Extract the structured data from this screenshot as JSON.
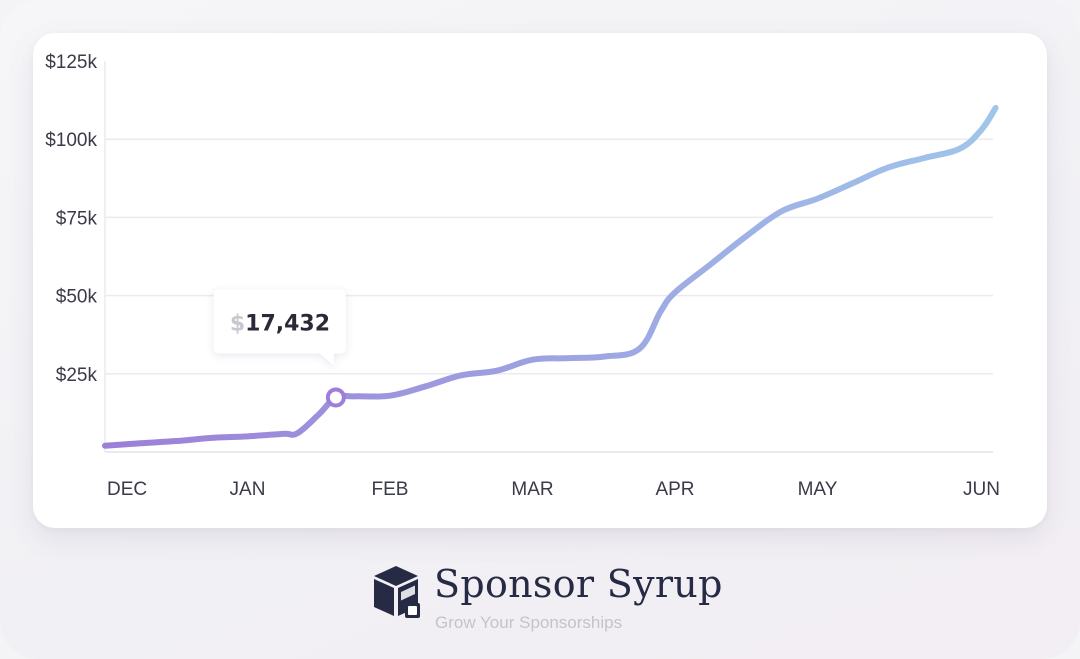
{
  "chart_data": {
    "type": "line",
    "x_categories": [
      "DEC",
      "JAN",
      "FEB",
      "MAR",
      "APR",
      "MAY",
      "JUN"
    ],
    "y_tick_labels": [
      "$125k",
      "$100k",
      "$75k",
      "$50k",
      "$25k"
    ],
    "y_tick_values": [
      125000,
      100000,
      75000,
      50000,
      25000
    ],
    "ylim": [
      0,
      125000
    ],
    "grid": true,
    "series": [
      {
        "points": [
          [
            0.0,
            2000
          ],
          [
            0.25,
            2800
          ],
          [
            0.5,
            3500
          ],
          [
            0.75,
            4500
          ],
          [
            1.0,
            5000
          ],
          [
            1.25,
            5800
          ],
          [
            1.35,
            6000
          ],
          [
            1.5,
            12000
          ],
          [
            1.62,
            17432
          ],
          [
            1.75,
            17800
          ],
          [
            2.0,
            18000
          ],
          [
            2.25,
            21000
          ],
          [
            2.5,
            24500
          ],
          [
            2.75,
            26000
          ],
          [
            3.0,
            29500
          ],
          [
            3.25,
            30000
          ],
          [
            3.5,
            30500
          ],
          [
            3.75,
            33000
          ],
          [
            3.9,
            45000
          ],
          [
            4.0,
            51000
          ],
          [
            4.25,
            60000
          ],
          [
            4.5,
            69000
          ],
          [
            4.75,
            77000
          ],
          [
            5.0,
            81000
          ],
          [
            5.25,
            86000
          ],
          [
            5.5,
            91000
          ],
          [
            5.75,
            94000
          ],
          [
            6.0,
            97000
          ],
          [
            6.15,
            103000
          ],
          [
            6.25,
            110000
          ]
        ]
      }
    ],
    "tooltip": {
      "currency": "$",
      "value": "17,432",
      "x": 1.62,
      "y": 17432
    },
    "line_gradient": [
      "#9c7fd8",
      "#9fc6ea"
    ],
    "grid_color": "#ebebef"
  },
  "brand": {
    "name": "Sponsor Syrup",
    "tagline": "Grow Your Sponsorships",
    "color": "#262a45"
  }
}
